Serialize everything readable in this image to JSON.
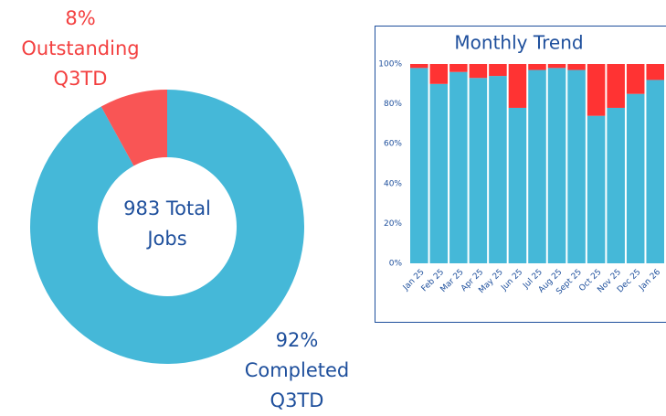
{
  "chart_data": [
    {
      "type": "donut",
      "annotation": "983 Total Jobs",
      "categories": [
        "Outstanding Q3TD",
        "Completed Q3TD"
      ],
      "values": [
        8,
        92
      ],
      "value_labels": [
        "8%",
        "92%"
      ],
      "colors": [
        "#f95555",
        "#45b8d8"
      ],
      "label_colors": [
        "#f34040",
        "#1e4f9c"
      ]
    },
    {
      "type": "stacked_bar",
      "title": "Monthly Trend",
      "categories": [
        "Jan 25",
        "Feb 25",
        "Mar 25",
        "Apr 25",
        "May 25",
        "Jun 25",
        "Jul 25",
        "Aug 25",
        "Sept 25",
        "Oct 25",
        "Nov 25",
        "Dec 25",
        "Jan 26"
      ],
      "series": [
        {
          "color": "#45b8d8",
          "values": [
            98,
            90,
            96,
            93,
            94,
            78,
            97,
            98,
            97,
            74,
            78,
            85,
            92
          ]
        },
        {
          "color": "#ff3333",
          "values": [
            2,
            10,
            4,
            7,
            6,
            22,
            3,
            2,
            3,
            26,
            22,
            15,
            8
          ]
        }
      ],
      "ylim": [
        0,
        100
      ],
      "yticks": [
        {
          "value": 0,
          "label": "0%"
        },
        {
          "value": 20,
          "label": "20%"
        },
        {
          "value": 40,
          "label": "40%"
        },
        {
          "value": 60,
          "label": "60%"
        },
        {
          "value": 80,
          "label": "80%"
        },
        {
          "value": 100,
          "label": "100%"
        }
      ]
    }
  ]
}
